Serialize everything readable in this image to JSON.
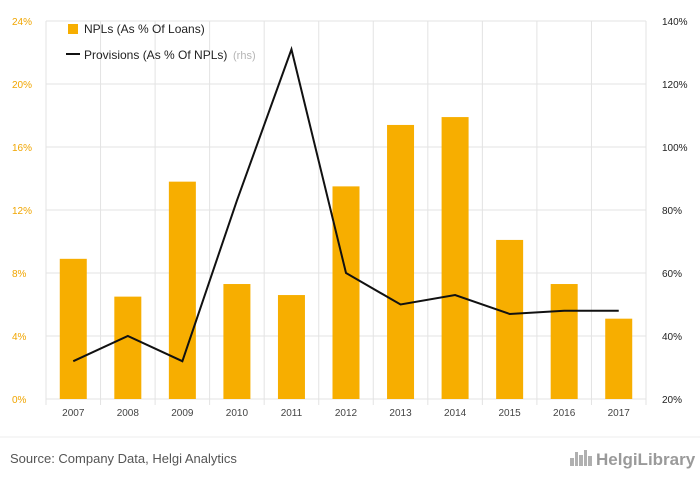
{
  "chart_data": {
    "type": "bar",
    "categories": [
      "2007",
      "2008",
      "2009",
      "2010",
      "2011",
      "2012",
      "2013",
      "2014",
      "2015",
      "2016",
      "2017"
    ],
    "series": [
      {
        "name": "NPLs (As % Of Loans)",
        "kind": "bar",
        "axis": "left",
        "values": [
          8.9,
          6.5,
          13.8,
          7.3,
          6.6,
          13.5,
          17.4,
          17.9,
          10.1,
          7.3,
          5.1
        ]
      },
      {
        "name": "Provisions (As % Of NPLs)",
        "kind": "line",
        "axis": "right",
        "values": [
          32,
          40,
          32,
          83,
          131,
          60,
          50,
          53,
          47,
          48,
          48
        ]
      }
    ],
    "y_left": {
      "ylim": [
        0,
        24
      ],
      "ticks": [
        "0%",
        "4%",
        "8%",
        "12%",
        "16%",
        "20%",
        "24%"
      ]
    },
    "y_right": {
      "ylim": [
        20,
        140
      ],
      "ticks": [
        "20%",
        "40%",
        "60%",
        "80%",
        "100%",
        "120%",
        "140%"
      ]
    },
    "legend": {
      "placement": "top-left",
      "rhs_note": "(rhs)"
    },
    "grid": true,
    "colors": {
      "bar": "#f7ae00",
      "line": "#111111",
      "grid": "#e3e3e3",
      "left_axis": "#f0a500"
    }
  },
  "footer": {
    "source": "Source: Company Data, Helgi Analytics",
    "brand": "HelgiLibrary"
  },
  "icons": {
    "brand_logo": "helgi-skyline-icon"
  }
}
